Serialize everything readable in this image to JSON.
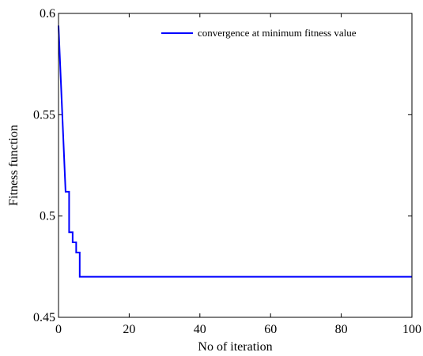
{
  "chart_data": {
    "type": "line",
    "title": "",
    "xlabel": "No of iteration",
    "ylabel": "Fitness function",
    "xlim": [
      0,
      100
    ],
    "ylim": [
      0.45,
      0.6
    ],
    "xticks": [
      0,
      20,
      40,
      60,
      80,
      100
    ],
    "xtick_labels": [
      "0",
      "20",
      "40",
      "60",
      "80",
      "100"
    ],
    "yticks": [
      0.45,
      0.5,
      0.55,
      0.6
    ],
    "ytick_labels": [
      "0.45",
      "0.5",
      "0.55",
      "0.6"
    ],
    "grid": false,
    "legend": {
      "placement": "top-right",
      "entries": [
        "convergence at minimum fitness value"
      ]
    },
    "series": [
      {
        "name": "convergence at minimum fitness value",
        "color": "#0000ff",
        "x": [
          0,
          2,
          2,
          3,
          3,
          4,
          4,
          5,
          5,
          6,
          6,
          100
        ],
        "y": [
          0.594,
          0.512,
          0.512,
          0.512,
          0.492,
          0.492,
          0.487,
          0.487,
          0.482,
          0.482,
          0.47,
          0.47
        ]
      }
    ]
  }
}
